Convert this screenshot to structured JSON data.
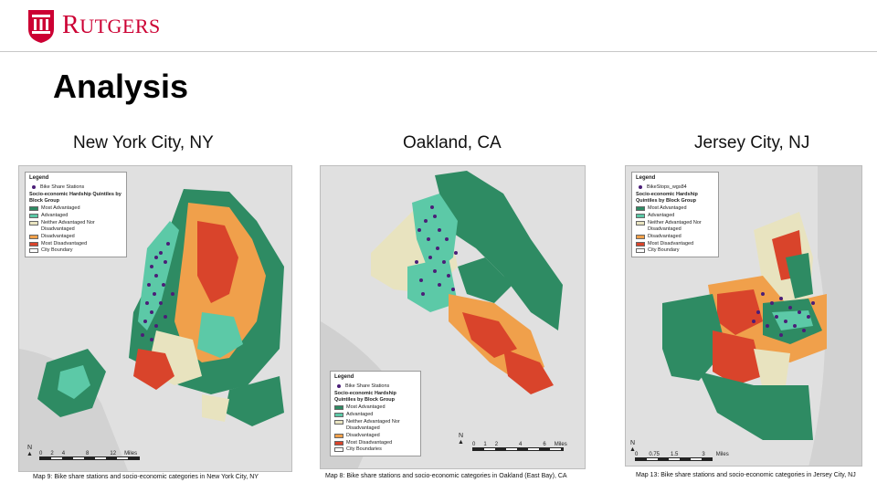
{
  "header": {
    "logo_text_first": "R",
    "logo_text_rest": "UTGERS"
  },
  "slide": {
    "title": "Analysis"
  },
  "legend_common": {
    "title": "Legend",
    "subtitle": "Socio-economic Hardship Quintiles by Block Group",
    "categories": [
      {
        "label": "Most Advantaged",
        "color": "#2e8b63"
      },
      {
        "label": "Advantaged",
        "color": "#5cc9a7"
      },
      {
        "label": "Neither Advantaged Nor Disadvantaged",
        "color": "#e8e3bf"
      },
      {
        "label": "Disadvantaged",
        "color": "#f0a04b"
      },
      {
        "label": "Most Disadvantaged",
        "color": "#d9442b"
      }
    ],
    "station_color": "#4b1e78"
  },
  "maps": [
    {
      "heading": "New York City, NY",
      "stations_label": "Bike Share Stations",
      "boundary_label": "City Boundary",
      "scale_ticks": [
        "0",
        "2",
        "4",
        "8",
        "12"
      ],
      "scale_unit": "Miles",
      "north": "N",
      "caption": "Map 9: Bike share stations and socio-economic categories in New York City, NY"
    },
    {
      "heading": "Oakland,  CA",
      "stations_label": "Bike Share Stations",
      "boundary_label": "City Boundaries",
      "scale_ticks": [
        "0",
        "1",
        "2",
        "4",
        "6"
      ],
      "scale_unit": "Miles",
      "north": "N",
      "caption": "Map 8: Bike share stations and socio-economic categories in Oakland (East Bay), CA"
    },
    {
      "heading": "Jersey City, NJ",
      "stations_label": "BikeStops_wgs84",
      "boundary_label": "City Boundary",
      "scale_ticks": [
        "0",
        "0.75",
        "1.5",
        "3"
      ],
      "scale_unit": "Miles",
      "north": "N",
      "caption": "Map 13: Bike share stations and socio-economic categories in Jersey City, NJ"
    }
  ]
}
